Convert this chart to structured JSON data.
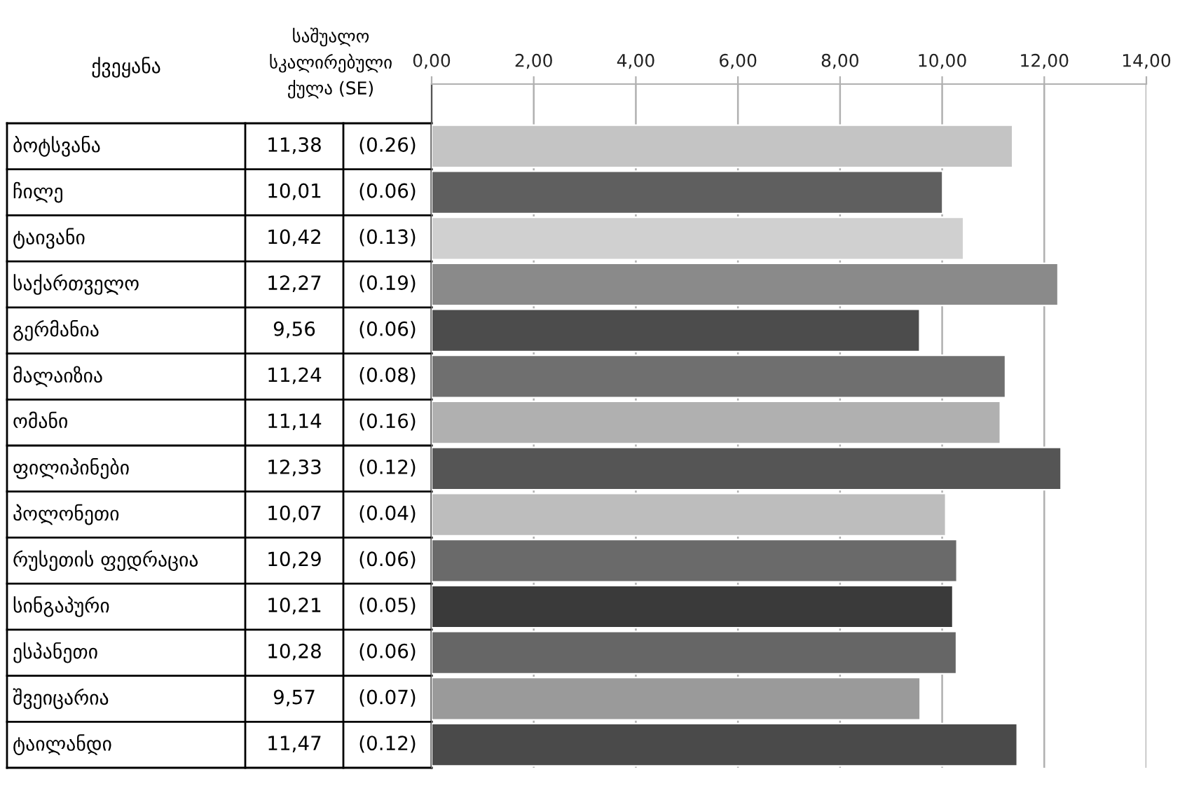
{
  "chart_data": {
    "type": "bar",
    "orientation": "horizontal",
    "ylabel": "ქვეყანა",
    "xlabel": "საშუალო\nსკალირებული\nქულა (SE)",
    "categories": [
      "ბოტსვანა",
      "ჩილე",
      "ტაივანი",
      "საქართველო",
      "გერმანია",
      "მალაიზია",
      "ომანი",
      "ფილიპინები",
      "პოლონეთი",
      "რუსეთის ფედრაცია",
      "სინგაპური",
      "ესპანეთი",
      "შვეიცარია",
      "ტაილანდი"
    ],
    "values": [
      11.38,
      10.01,
      10.42,
      12.27,
      9.56,
      11.24,
      11.14,
      12.33,
      10.07,
      10.29,
      10.21,
      10.28,
      9.57,
      11.47
    ],
    "value_labels": [
      "11,38",
      "10,01",
      "10,42",
      "12,27",
      "9,56",
      "11,24",
      "11,14",
      "12,33",
      "10,07",
      "10,29",
      "10,21",
      "10,28",
      "9,57",
      "11,47"
    ],
    "annotations": [
      "(0.26)",
      "(0.06)",
      "(0.13)",
      "(0.19)",
      "(0.06)",
      "(0.08)",
      "(0.16)",
      "(0.12)",
      "(0.04)",
      "(0.06)",
      "(0.05)",
      "(0.06)",
      "(0.07)",
      "(0.12)"
    ],
    "colors": [
      "#c4c4c4",
      "#5f5f5f",
      "#d0d0d0",
      "#8a8a8a",
      "#4c4c4c",
      "#6f6f6f",
      "#b0b0b0",
      "#555555",
      "#bdbdbd",
      "#6a6a6a",
      "#3a3a3a",
      "#666666",
      "#9a9a9a",
      "#4a4a4a"
    ],
    "x2lim": [
      0,
      14
    ],
    "x2ticks": [
      {
        "value": 0,
        "label": "0,00"
      },
      {
        "value": 2,
        "label": "2,00"
      },
      {
        "value": 4,
        "label": "4,00"
      },
      {
        "value": 6,
        "label": "6,00"
      },
      {
        "value": 8,
        "label": "8,00"
      },
      {
        "value": 10,
        "label": "10,00"
      },
      {
        "value": 12,
        "label": "12,00"
      },
      {
        "value": 14,
        "label": "14,00"
      }
    ],
    "grid": "x",
    "legend": false
  }
}
